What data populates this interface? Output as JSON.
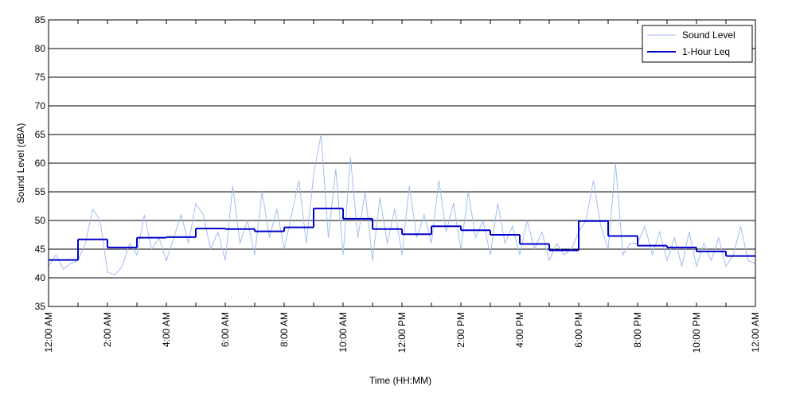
{
  "chart_data": {
    "type": "line",
    "xlabel": "Time (HH:MM)",
    "ylabel": "Sound Level (dBA)",
    "xlim": [
      0,
      24
    ],
    "ylim": [
      35,
      85
    ],
    "yticks": [
      35,
      40,
      45,
      50,
      55,
      60,
      65,
      70,
      75,
      80,
      85
    ],
    "xticks": [
      {
        "value": 0,
        "label": "12:00 AM"
      },
      {
        "value": 2,
        "label": "2:00 AM"
      },
      {
        "value": 4,
        "label": "4:00 AM"
      },
      {
        "value": 6,
        "label": "6:00 AM"
      },
      {
        "value": 8,
        "label": "8:00 AM"
      },
      {
        "value": 10,
        "label": "10:00 AM"
      },
      {
        "value": 12,
        "label": "12:00 PM"
      },
      {
        "value": 14,
        "label": "2:00 PM"
      },
      {
        "value": 16,
        "label": "4:00 PM"
      },
      {
        "value": 18,
        "label": "6:00 PM"
      },
      {
        "value": 20,
        "label": "8:00 PM"
      },
      {
        "value": 22,
        "label": "10:00 PM"
      },
      {
        "value": 24,
        "label": "12:00 AM"
      }
    ],
    "xminorticks": [
      1,
      3,
      5,
      7,
      9,
      11,
      13,
      15,
      17,
      19,
      21,
      23
    ],
    "grid": true,
    "legend": "upper right",
    "series": [
      {
        "name": "Sound Level",
        "color": "#a3bdf0",
        "x": [
          0,
          0.25,
          0.5,
          0.75,
          1,
          1.25,
          1.5,
          1.75,
          2,
          2.25,
          2.5,
          2.75,
          3,
          3.25,
          3.5,
          3.75,
          4,
          4.25,
          4.5,
          4.75,
          5,
          5.25,
          5.5,
          5.75,
          6,
          6.25,
          6.5,
          6.75,
          7,
          7.25,
          7.5,
          7.75,
          8,
          8.25,
          8.5,
          8.75,
          9,
          9.25,
          9.5,
          9.75,
          10,
          10.25,
          10.5,
          10.75,
          11,
          11.25,
          11.5,
          11.75,
          12,
          12.25,
          12.5,
          12.75,
          13,
          13.25,
          13.5,
          13.75,
          14,
          14.25,
          14.5,
          14.75,
          15,
          15.25,
          15.5,
          15.75,
          16,
          16.25,
          16.5,
          16.75,
          17,
          17.25,
          17.5,
          17.75,
          18,
          18.25,
          18.5,
          18.75,
          19,
          19.25,
          19.5,
          19.75,
          20,
          20.25,
          20.5,
          20.75,
          21,
          21.25,
          21.5,
          21.75,
          22,
          22.25,
          22.5,
          22.75,
          23,
          23.25,
          23.5,
          23.75,
          24
        ],
        "values": [
          42,
          44,
          41.5,
          42.5,
          43,
          46,
          52,
          50,
          41,
          40.5,
          42,
          46,
          44,
          51,
          45,
          47,
          43,
          47,
          51,
          46,
          53,
          51,
          45,
          48,
          43,
          56,
          46,
          50,
          44,
          55,
          47,
          52,
          45,
          51,
          57,
          46,
          58,
          65,
          47,
          59,
          44,
          61,
          47,
          55,
          43,
          54,
          46,
          52,
          44,
          56,
          47,
          51,
          46,
          57,
          48,
          53,
          45,
          55,
          47,
          50,
          44,
          53,
          46,
          49,
          44,
          50,
          45,
          48,
          43,
          46,
          44,
          45,
          48,
          50,
          57,
          49,
          45,
          60,
          44,
          46,
          46,
          49,
          44,
          48,
          43,
          47,
          42,
          48,
          42,
          46,
          43,
          47,
          42,
          44,
          49,
          43,
          42.5
        ]
      },
      {
        "name": "1-Hour Leq",
        "color": "#0000cc",
        "step": true,
        "x": [
          0,
          1,
          2,
          3,
          4,
          5,
          6,
          7,
          8,
          9,
          10,
          11,
          12,
          13,
          14,
          15,
          16,
          17,
          18,
          19,
          20,
          21,
          22,
          23
        ],
        "values": [
          43.1,
          46.7,
          45.3,
          47.0,
          47.1,
          48.6,
          48.5,
          48.1,
          48.8,
          52.1,
          50.3,
          48.5,
          47.6,
          49.0,
          48.3,
          47.5,
          45.9,
          44.8,
          49.9,
          47.3,
          45.6,
          45.3,
          44.6,
          43.8
        ]
      }
    ]
  }
}
